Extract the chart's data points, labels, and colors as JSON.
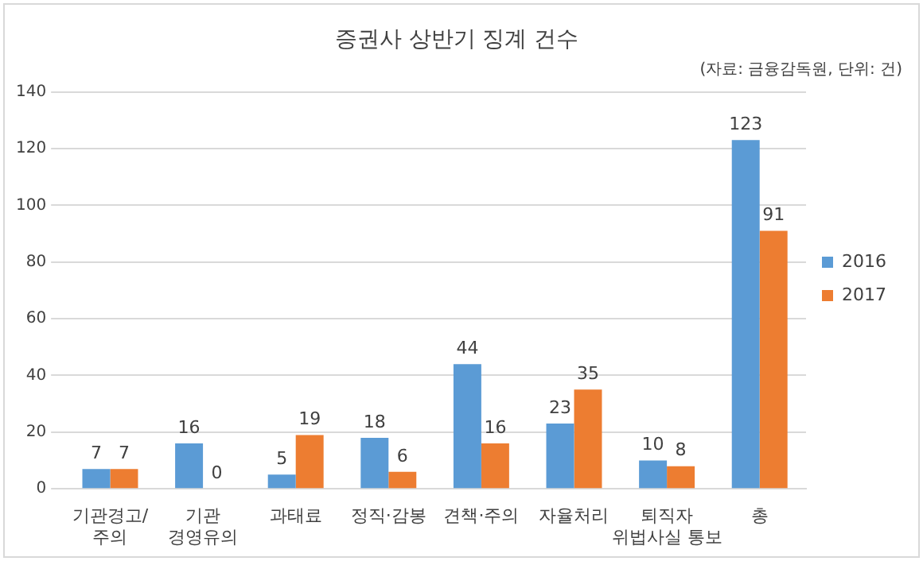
{
  "chart_data": {
    "type": "bar",
    "title": "증권사 상반기 징계 건수",
    "subtitle": "(자료: 금융감독원, 단위: 건)",
    "categories": [
      "기관경고/주의",
      "기관 경영유의",
      "과태료",
      "정직·감봉",
      "견책·주의",
      "자율처리",
      "퇴직자 위법사실 통보",
      "총"
    ],
    "series": [
      {
        "name": "2016",
        "color": "#5b9bd5",
        "values": [
          7,
          16,
          5,
          18,
          44,
          23,
          10,
          123
        ]
      },
      {
        "name": "2017",
        "color": "#ed7d31",
        "values": [
          7,
          0,
          19,
          6,
          16,
          35,
          8,
          91
        ]
      }
    ],
    "ylim": [
      0,
      140
    ],
    "yticks": [
      0,
      20,
      40,
      60,
      80,
      100,
      120,
      140
    ],
    "grid": "y",
    "legend": "right",
    "data_labels": true
  }
}
